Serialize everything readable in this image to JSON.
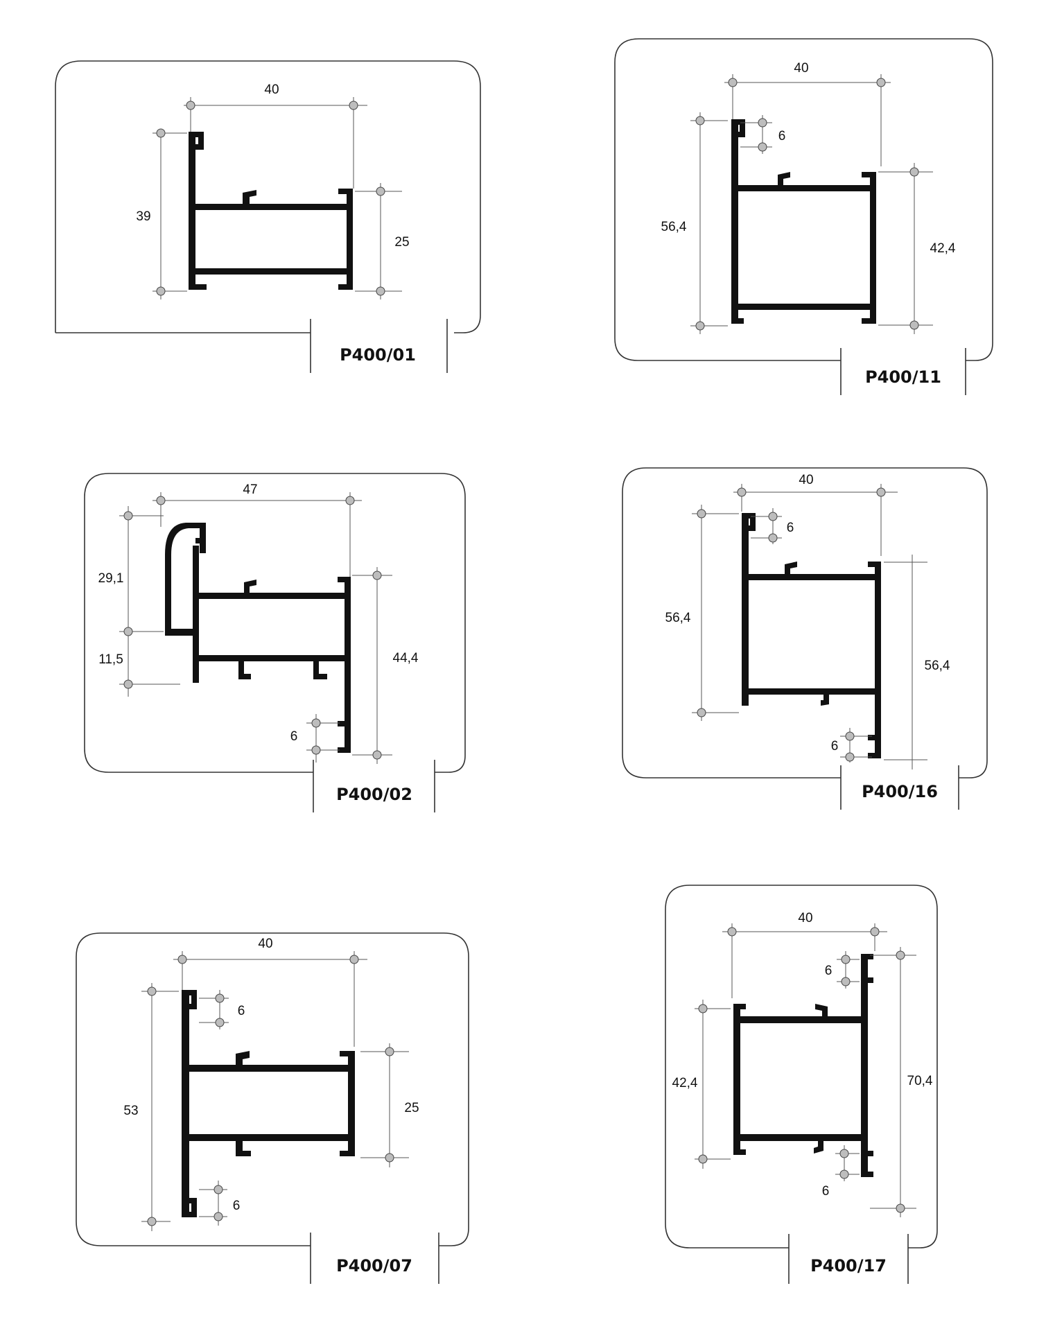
{
  "profiles": [
    {
      "code": "P400/01",
      "dims": {
        "width": "40",
        "height": "39",
        "side": "25"
      }
    },
    {
      "code": "P400/11",
      "dims": {
        "width": "40",
        "slot": "6",
        "height": "56,4",
        "side": "42,4"
      }
    },
    {
      "code": "P400/02",
      "dims": {
        "width": "47",
        "upper": "29,1",
        "lower": "11,5",
        "side": "44,4",
        "slot": "6"
      }
    },
    {
      "code": "P400/16",
      "dims": {
        "width": "40",
        "slot_top": "6",
        "height": "56,4",
        "side": "56,4",
        "slot_bottom": "6"
      }
    },
    {
      "code": "P400/07",
      "dims": {
        "width": "40",
        "slot_top": "6",
        "height": "53",
        "side": "25",
        "slot_bottom": "6"
      }
    },
    {
      "code": "P400/17",
      "dims": {
        "width": "40",
        "slot_top": "6",
        "height": "42,4",
        "side": "70,4",
        "slot_bottom": "6"
      }
    }
  ]
}
